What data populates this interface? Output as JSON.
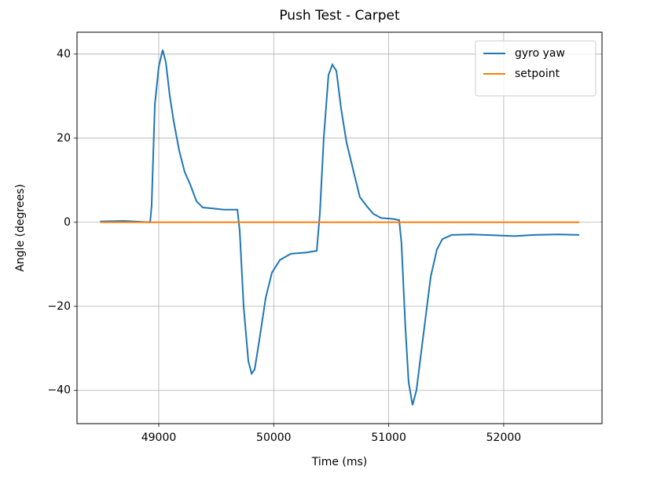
{
  "chart_data": {
    "type": "line",
    "title": "Push Test - Carpet",
    "xlabel": "Time (ms)",
    "ylabel": "Angle (degrees)",
    "xlim": [
      48289,
      52855
    ],
    "ylim": [
      -47.9,
      45.2
    ],
    "xticks": [
      49000,
      50000,
      51000,
      52000
    ],
    "yticks": [
      {
        "value": -40,
        "label": "−40"
      },
      {
        "value": -20,
        "label": "−20"
      },
      0,
      20,
      40
    ],
    "grid": true,
    "legend": "upper right",
    "series": [
      {
        "name": "gyro yaw",
        "color": "#1f77b4",
        "x": [
          48490,
          48700,
          48925,
          48938,
          48966,
          49000,
          49034,
          49062,
          49096,
          49130,
          49178,
          49225,
          49273,
          49328,
          49383,
          49465,
          49567,
          49684,
          49704,
          49738,
          49779,
          49807,
          49834,
          49875,
          49930,
          49984,
          50053,
          50148,
          50285,
          50374,
          50401,
          50435,
          50476,
          50510,
          50545,
          50586,
          50633,
          50695,
          50749,
          50804,
          50866,
          50934,
          51036,
          51091,
          51111,
          51145,
          51173,
          51207,
          51241,
          51296,
          51365,
          51419,
          51467,
          51550,
          51720,
          51925,
          52096,
          52267,
          52472,
          52657
        ],
        "values": [
          0.2,
          0.3,
          0,
          4,
          28,
          37,
          41,
          38,
          30,
          24,
          17,
          12,
          9,
          5,
          3.5,
          3.3,
          3,
          3,
          -2,
          -20,
          -33,
          -36,
          -35,
          -28,
          -18,
          -12,
          -9,
          -7.5,
          -7.2,
          -6.8,
          2,
          20,
          35,
          37.5,
          36,
          27,
          19,
          12,
          6,
          4,
          2,
          1,
          0.8,
          0.5,
          -5,
          -25,
          -38,
          -43.5,
          -40,
          -28,
          -13,
          -6.5,
          -4,
          -3,
          -2.9,
          -3.1,
          -3.3,
          -3,
          -2.9,
          -3
        ]
      },
      {
        "name": "setpoint",
        "color": "#ff7f0e",
        "x": [
          48490,
          52657
        ],
        "values": [
          0,
          0
        ]
      }
    ]
  }
}
